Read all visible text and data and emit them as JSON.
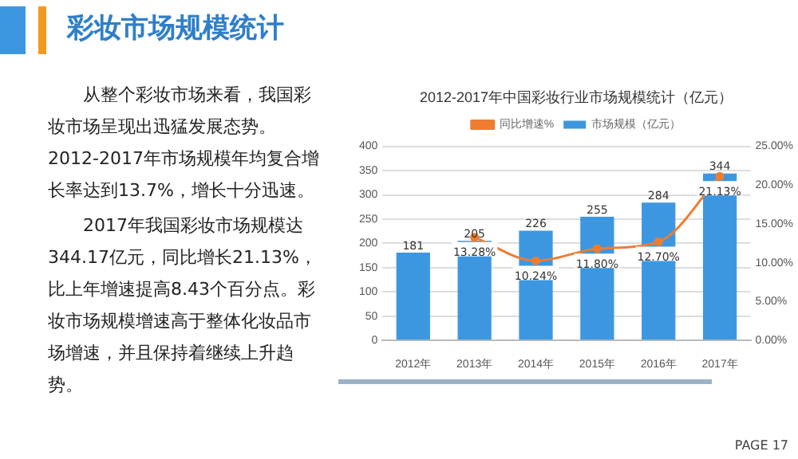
{
  "chart_data": {
    "type": "bar",
    "title": "2012-2017年中国彩妆行业市场规模统计（亿元）",
    "categories": [
      "2012年",
      "2013年",
      "2014年",
      "2015年",
      "2016年",
      "2017年"
    ],
    "series": [
      {
        "name": "市场规模（亿元）",
        "color": "#3d97e0",
        "values": [
          181,
          205,
          226,
          255,
          284,
          344
        ]
      },
      {
        "name": "同比增速%",
        "type": "line",
        "axis": "y2",
        "color": "#ed7d31",
        "values": [
          null,
          13.28,
          10.24,
          11.8,
          12.7,
          21.13
        ],
        "value_labels": [
          null,
          "13.28%",
          "10.24%",
          "11.80%",
          "12.70%",
          "21.13%"
        ]
      }
    ],
    "ylim": [
      0,
      400
    ],
    "yticks": [
      0,
      50,
      100,
      150,
      200,
      250,
      300,
      350,
      400
    ],
    "y2lim": [
      0,
      25
    ],
    "y2ticks": [
      {
        "value": 0,
        "label": "0.00%"
      },
      {
        "value": 5,
        "label": "5.00%"
      },
      {
        "value": 10,
        "label": "10.00%"
      },
      {
        "value": 15,
        "label": "15.00%"
      },
      {
        "value": 20,
        "label": "20.00%"
      },
      {
        "value": 25,
        "label": "25.00%"
      }
    ],
    "grid": "y",
    "legend": "top",
    "data_labels": true,
    "marker": "circle",
    "annotations": [
      "彩妆市场规模统计",
      "从整个彩妆市场来看，我国彩妆市场呈现出迅猛发展态势。2012-2017年市场规模年均复合增长率达到13.7%，增长十分迅速。",
      "2017年我国彩妆市场规模达344.17亿元，同比增长21.13%，比上年增速提高8.43个百分点。彩妆市场规模增速高于整体化妆品市场增速，并且保持着继续上升趋势。",
      "PAGE 17"
    ]
  }
}
